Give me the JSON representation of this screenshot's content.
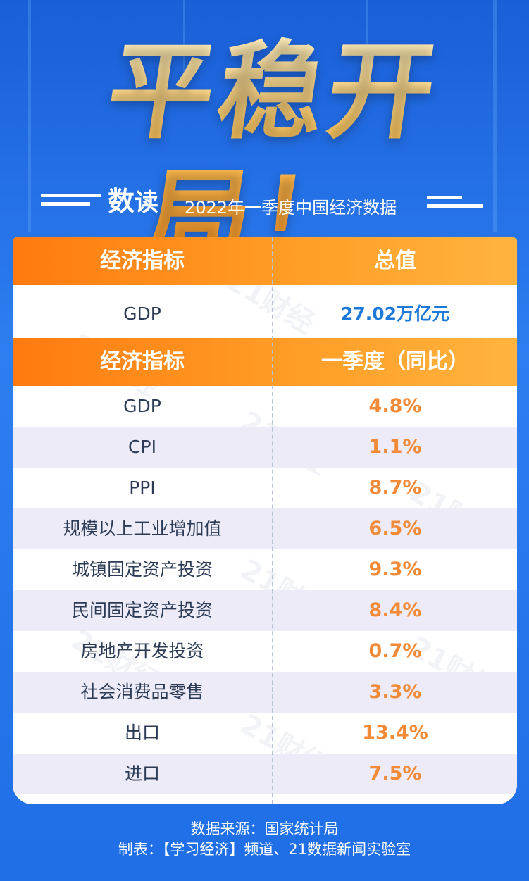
{
  "header": {
    "title": "平稳开局！",
    "sub_prefix_1": "数",
    "sub_prefix_2": "读",
    "subtitle": "2022年一季度中国经济数据"
  },
  "table1": {
    "col1": "经济指标",
    "col2": "总值",
    "row_label": "GDP",
    "row_value": "27.02万亿元"
  },
  "table2": {
    "col1": "经济指标",
    "col2": "一季度（同比）",
    "rows": [
      {
        "label": "GDP",
        "value": "4.8%"
      },
      {
        "label": "CPI",
        "value": "1.1%"
      },
      {
        "label": "PPI",
        "value": "8.7%"
      },
      {
        "label": "规模以上工业增加值",
        "value": "6.5%"
      },
      {
        "label": "城镇固定资产投资",
        "value": "9.3%"
      },
      {
        "label": "民间固定资产投资",
        "value": "8.4%"
      },
      {
        "label": "房地产开发投资",
        "value": "0.7%"
      },
      {
        "label": "社会消费品零售",
        "value": "3.3%"
      },
      {
        "label": "出口",
        "value": "13.4%"
      },
      {
        "label": "进口",
        "value": "7.5%"
      }
    ]
  },
  "footer": {
    "source": "数据来源：国家统计局",
    "credit": "制表：【学习经济】频道、21数据新闻实验室"
  },
  "watermark": "21财经",
  "colors": {
    "background": "#1f6ee6",
    "header_orange": "#ff8a1a",
    "value_orange": "#f28a38",
    "value_blue": "#1d79d8",
    "alt_row": "#ecebf7"
  }
}
